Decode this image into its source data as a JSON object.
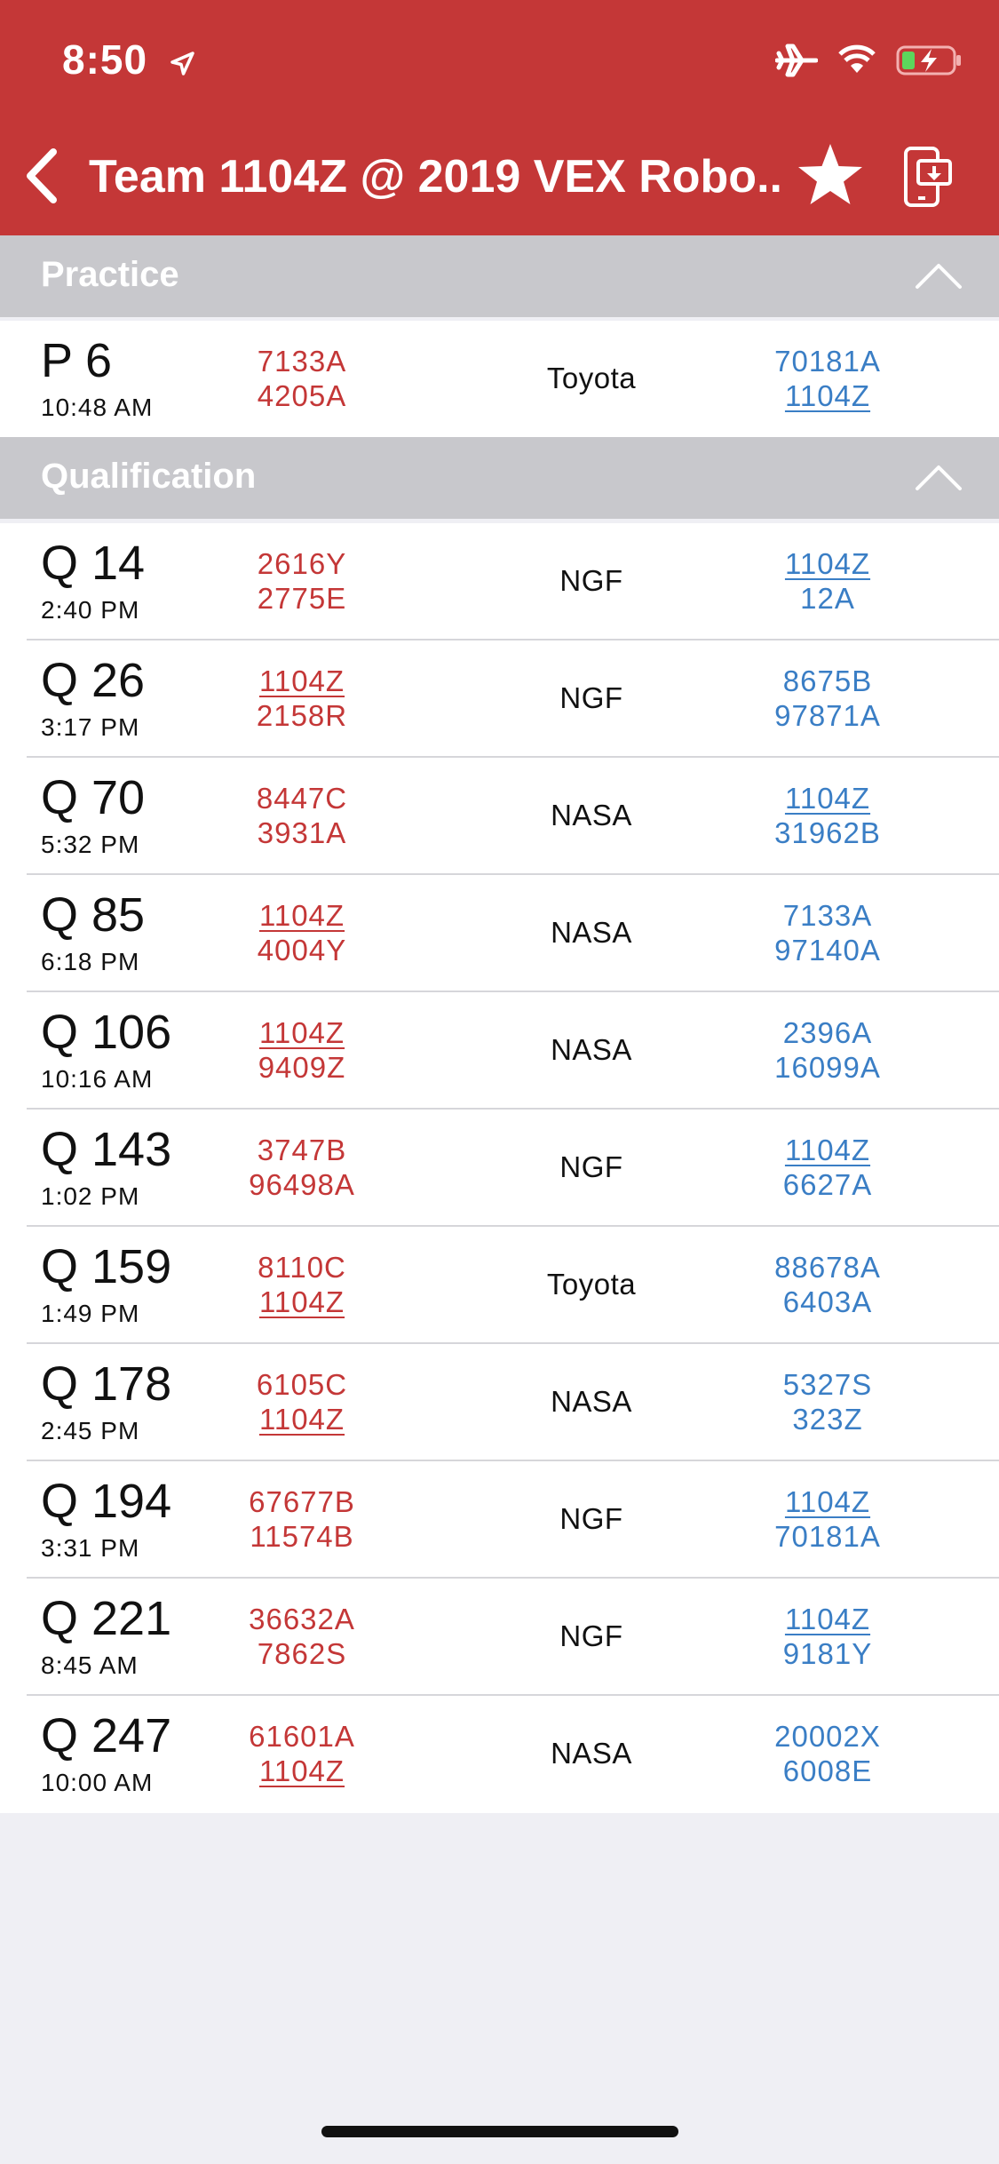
{
  "status": {
    "time": "8:50"
  },
  "nav": {
    "title": "Team 1104Z @ 2019 VEX Robo..."
  },
  "sections": {
    "practice": {
      "title": "Practice",
      "matches": [
        {
          "name": "P 6",
          "time": "10:48 AM",
          "red": [
            "7133A",
            "4205A"
          ],
          "field": "Toyota",
          "blue": [
            "70181A",
            "1104Z"
          ]
        }
      ]
    },
    "qualification": {
      "title": "Qualification",
      "matches": [
        {
          "name": "Q 14",
          "time": "2:40 PM",
          "red": [
            "2616Y",
            "2775E"
          ],
          "field": "NGF",
          "blue": [
            "1104Z",
            "12A"
          ]
        },
        {
          "name": "Q 26",
          "time": "3:17 PM",
          "red": [
            "1104Z",
            "2158R"
          ],
          "field": "NGF",
          "blue": [
            "8675B",
            "97871A"
          ]
        },
        {
          "name": "Q 70",
          "time": "5:32 PM",
          "red": [
            "8447C",
            "3931A"
          ],
          "field": "NASA",
          "blue": [
            "1104Z",
            "31962B"
          ]
        },
        {
          "name": "Q 85",
          "time": "6:18 PM",
          "red": [
            "1104Z",
            "4004Y"
          ],
          "field": "NASA",
          "blue": [
            "7133A",
            "97140A"
          ]
        },
        {
          "name": "Q 106",
          "time": "10:16 AM",
          "red": [
            "1104Z",
            "9409Z"
          ],
          "field": "NASA",
          "blue": [
            "2396A",
            "16099A"
          ]
        },
        {
          "name": "Q 143",
          "time": "1:02 PM",
          "red": [
            "3747B",
            "96498A"
          ],
          "field": "NGF",
          "blue": [
            "1104Z",
            "6627A"
          ]
        },
        {
          "name": "Q 159",
          "time": "1:49 PM",
          "red": [
            "8110C",
            "1104Z"
          ],
          "field": "Toyota",
          "blue": [
            "88678A",
            "6403A"
          ]
        },
        {
          "name": "Q 178",
          "time": "2:45 PM",
          "red": [
            "6105C",
            "1104Z"
          ],
          "field": "NASA",
          "blue": [
            "5327S",
            "323Z"
          ]
        },
        {
          "name": "Q 194",
          "time": "3:31 PM",
          "red": [
            "67677B",
            "11574B"
          ],
          "field": "NGF",
          "blue": [
            "1104Z",
            "70181A"
          ]
        },
        {
          "name": "Q 221",
          "time": "8:45 AM",
          "red": [
            "36632A",
            "7862S"
          ],
          "field": "NGF",
          "blue": [
            "1104Z",
            "9181Y"
          ]
        },
        {
          "name": "Q 247",
          "time": "10:00 AM",
          "red": [
            "61601A",
            "1104Z"
          ],
          "field": "NASA",
          "blue": [
            "20002X",
            "6008E"
          ]
        }
      ]
    }
  },
  "highlight_team": "1104Z",
  "colors": {
    "accent": "#c43737",
    "red_alliance": "#c43737",
    "blue_alliance": "#3a7ec5",
    "section_header": "#c8c8cc"
  },
  "icons": [
    "location-arrow-icon",
    "airplane-icon",
    "wifi-icon",
    "battery-charging-icon",
    "back-chevron-icon",
    "star-icon",
    "device-share-icon",
    "collapse-chevron-icon"
  ]
}
